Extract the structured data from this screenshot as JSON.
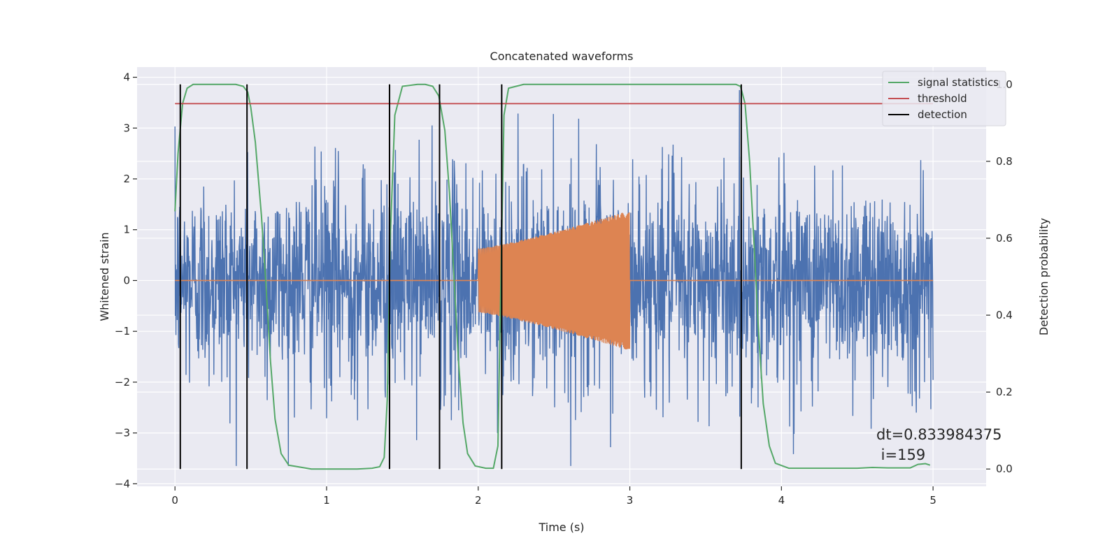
{
  "chart_data": {
    "type": "line",
    "title": "Concatenated waveforms",
    "xlabel": "Time (s)",
    "ylabel_left": "Whitened strain",
    "ylabel_right": "Detection probability",
    "xlim": [
      -0.25,
      5.35
    ],
    "ylim_left": [
      -4.05,
      4.2
    ],
    "ylim_right": [
      -0.045,
      1.045
    ],
    "x_ticks": [
      0,
      1,
      2,
      3,
      4,
      5
    ],
    "y_ticks_left": [
      -4,
      -3,
      -2,
      -1,
      0,
      1,
      2,
      3,
      4
    ],
    "y_ticks_right": [
      0.0,
      0.2,
      0.4,
      0.6,
      0.8,
      1.0
    ],
    "x_tick_labels": [
      "0",
      "1",
      "2",
      "3",
      "4",
      "5"
    ],
    "y_tick_labels_left": [
      "−4",
      "−3",
      "−2",
      "−1",
      "0",
      "1",
      "2",
      "3",
      "4"
    ],
    "y_tick_labels_right": [
      "0.0",
      "0.2",
      "0.4",
      "0.6",
      "0.8",
      "1.0"
    ],
    "grid": true,
    "legend_position": "top-right",
    "colors": {
      "background": "#eaeaf2",
      "grid": "#ffffff",
      "noise": "#4c72b0",
      "injection": "#dd8452",
      "signal_statistics": "#55a868",
      "threshold": "#c44e52",
      "detection": "#000000"
    },
    "series": [
      {
        "name": "",
        "axis": "left",
        "kind": "whitened noise",
        "x_range": [
          0,
          5
        ],
        "typical_peak_amplitude": 2.6,
        "max_peak": 3.85,
        "min_peak": -3.65
      },
      {
        "name": "",
        "axis": "left",
        "kind": "injected chirp",
        "x_range": [
          2,
          3
        ],
        "envelope_start": 0.63,
        "envelope_end": 1.38
      },
      {
        "name": "signal statistics",
        "axis": "right",
        "x": [
          0.0,
          0.02,
          0.05,
          0.08,
          0.12,
          0.2,
          0.3,
          0.4,
          0.45,
          0.48,
          0.5,
          0.53,
          0.57,
          0.6,
          0.63,
          0.66,
          0.7,
          0.75,
          0.9,
          1.2,
          1.3,
          1.35,
          1.38,
          1.4,
          1.42,
          1.45,
          1.5,
          1.6,
          1.65,
          1.7,
          1.74,
          1.78,
          1.81,
          1.84,
          1.87,
          1.9,
          1.93,
          1.98,
          2.05,
          2.1,
          2.13,
          2.15,
          2.17,
          2.2,
          2.3,
          2.5,
          3.0,
          3.5,
          3.7,
          3.73,
          3.76,
          3.79,
          3.82,
          3.85,
          3.88,
          3.92,
          3.96,
          4.05,
          4.5,
          4.6,
          4.7,
          4.85,
          4.9,
          4.95,
          4.98
        ],
        "values": [
          0.67,
          0.82,
          0.95,
          0.99,
          1.0,
          1.0,
          1.0,
          1.0,
          0.995,
          0.98,
          0.94,
          0.85,
          0.66,
          0.48,
          0.28,
          0.13,
          0.04,
          0.01,
          0.0,
          0.0,
          0.002,
          0.006,
          0.03,
          0.18,
          0.6,
          0.92,
          0.995,
          1.0,
          1.0,
          0.995,
          0.97,
          0.88,
          0.72,
          0.5,
          0.28,
          0.12,
          0.04,
          0.008,
          0.002,
          0.002,
          0.06,
          0.5,
          0.92,
          0.99,
          1.0,
          1.0,
          1.0,
          1.0,
          1.0,
          0.995,
          0.95,
          0.8,
          0.58,
          0.35,
          0.17,
          0.06,
          0.015,
          0.002,
          0.002,
          0.004,
          0.003,
          0.003,
          0.012,
          0.014,
          0.01
        ]
      },
      {
        "name": "threshold",
        "axis": "right",
        "x": [
          0,
          5
        ],
        "values": [
          0.95,
          0.95
        ]
      }
    ],
    "detections": {
      "name": "detection",
      "x": [
        0.035,
        0.475,
        1.415,
        1.745,
        2.155,
        3.735
      ],
      "ymin": 0.0,
      "ymax": 1.0
    },
    "legend": [
      "signal statistics",
      "threshold",
      "detection"
    ],
    "annotation": {
      "line1": "dt=0.833984375",
      "line2": " i=159"
    }
  }
}
